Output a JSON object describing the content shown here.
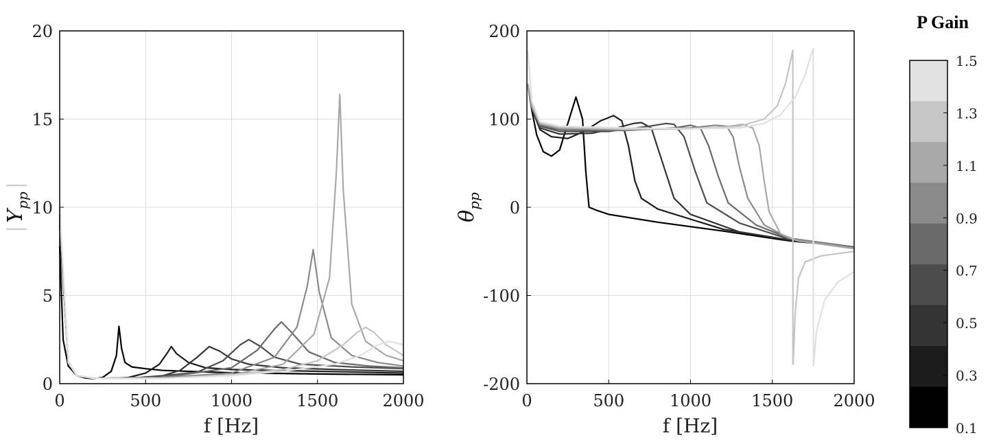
{
  "chart_data": [
    {
      "type": "line",
      "ylabel": "|Y_pp|",
      "xlabel": "f [Hz]",
      "xlim": [
        0,
        2000
      ],
      "ylim": [
        0,
        20
      ],
      "xticks": [
        "0",
        "500",
        "1000",
        "1500",
        "2000"
      ],
      "yticks": [
        "0",
        "5",
        "10",
        "15",
        "20"
      ],
      "grid": true,
      "series": [
        {
          "color": "#000000",
          "x": [
            0,
            20,
            50,
            100,
            150,
            200,
            250,
            300,
            330,
            345,
            360,
            380,
            420,
            500,
            600,
            800,
            1000,
            1500,
            2000
          ],
          "y": [
            7.8,
            2.5,
            1.0,
            0.45,
            0.32,
            0.28,
            0.35,
            0.7,
            1.6,
            3.25,
            2.0,
            1.2,
            0.95,
            0.85,
            0.75,
            0.68,
            0.62,
            0.55,
            0.5
          ]
        },
        {
          "color": "#1c1c1c",
          "x": [
            0,
            50,
            100,
            200,
            300,
            400,
            500,
            580,
            630,
            650,
            680,
            750,
            850,
            1000,
            1500,
            2000
          ],
          "y": [
            9.0,
            1.2,
            0.45,
            0.3,
            0.3,
            0.35,
            0.6,
            1.1,
            1.8,
            2.1,
            1.7,
            1.2,
            0.9,
            0.8,
            0.7,
            0.6
          ]
        },
        {
          "color": "#333333",
          "x": [
            0,
            50,
            100,
            200,
            400,
            600,
            700,
            800,
            870,
            930,
            1000,
            1100,
            1300,
            1600,
            2000
          ],
          "y": [
            9.3,
            1.2,
            0.45,
            0.3,
            0.3,
            0.45,
            0.75,
            1.5,
            2.1,
            1.85,
            1.4,
            1.1,
            0.9,
            0.8,
            0.7
          ]
        },
        {
          "color": "#4c4c4c",
          "x": [
            0,
            50,
            100,
            200,
            500,
            800,
            950,
            1050,
            1100,
            1170,
            1250,
            1400,
            1700,
            2000
          ],
          "y": [
            9.5,
            1.2,
            0.45,
            0.3,
            0.35,
            0.65,
            1.3,
            2.2,
            2.5,
            2.1,
            1.5,
            1.1,
            0.95,
            0.85
          ]
        },
        {
          "color": "#6a6a6a",
          "x": [
            0,
            50,
            100,
            200,
            600,
            1000,
            1150,
            1250,
            1290,
            1350,
            1450,
            1600,
            1800,
            2000
          ],
          "y": [
            9.6,
            1.2,
            0.45,
            0.3,
            0.35,
            0.9,
            1.9,
            3.1,
            3.5,
            2.9,
            1.8,
            1.2,
            1.0,
            0.9
          ]
        },
        {
          "color": "#8a8a8a",
          "x": [
            0,
            50,
            100,
            200,
            600,
            1000,
            1250,
            1380,
            1440,
            1475,
            1510,
            1580,
            1700,
            1850,
            2000
          ],
          "y": [
            9.7,
            1.2,
            0.45,
            0.3,
            0.35,
            0.6,
            1.5,
            3.2,
            5.5,
            7.6,
            5.2,
            2.6,
            1.6,
            1.2,
            1.0
          ]
        },
        {
          "color": "#a8a8a8",
          "x": [
            0,
            50,
            100,
            200,
            600,
            1000,
            1300,
            1480,
            1570,
            1610,
            1630,
            1650,
            1700,
            1780,
            1900,
            2000
          ],
          "y": [
            9.8,
            1.2,
            0.45,
            0.3,
            0.3,
            0.5,
            1.1,
            2.8,
            6.0,
            12.0,
            16.4,
            11.0,
            4.5,
            2.4,
            1.6,
            1.3
          ]
        },
        {
          "color": "#c4c4c4",
          "x": [
            0,
            50,
            100,
            200,
            600,
            1000,
            1300,
            1500,
            1650,
            1730,
            1780,
            1830,
            1900,
            2000
          ],
          "y": [
            9.9,
            1.2,
            0.45,
            0.3,
            0.3,
            0.5,
            0.8,
            1.3,
            2.2,
            2.9,
            3.2,
            2.9,
            2.2,
            1.6
          ]
        },
        {
          "color": "#e0e0e0",
          "x": [
            0,
            50,
            100,
            200,
            600,
            1000,
            1300,
            1600,
            1750,
            1850,
            1920,
            2000
          ],
          "y": [
            10.0,
            1.2,
            0.45,
            0.3,
            0.3,
            0.45,
            0.7,
            1.1,
            1.6,
            2.2,
            2.4,
            2.2
          ]
        }
      ]
    },
    {
      "type": "line",
      "ylabel": "θ_pp",
      "xlabel": "f [Hz]",
      "xlim": [
        0,
        2000
      ],
      "ylim": [
        -200,
        200
      ],
      "xticks": [
        "0",
        "500",
        "1000",
        "1500",
        "2000"
      ],
      "yticks": [
        "-200",
        "-100",
        "0",
        "100",
        "200"
      ],
      "grid": true,
      "series": [
        {
          "color": "#000000",
          "x": [
            5,
            30,
            60,
            100,
            150,
            200,
            250,
            300,
            340,
            360,
            380,
            420,
            500,
            800,
            1200,
            1600,
            2000
          ],
          "y": [
            140,
            110,
            82,
            63,
            58,
            65,
            95,
            125,
            100,
            40,
            0,
            -3,
            -8,
            -17,
            -27,
            -38,
            -45
          ]
        },
        {
          "color": "#1c1c1c",
          "x": [
            5,
            30,
            80,
            150,
            250,
            350,
            450,
            530,
            580,
            620,
            660,
            700,
            800,
            1200,
            1600,
            2000
          ],
          "y": [
            140,
            112,
            88,
            80,
            78,
            86,
            98,
            104,
            98,
            70,
            30,
            10,
            -2,
            -25,
            -37,
            -45
          ]
        },
        {
          "color": "#333333",
          "x": [
            5,
            30,
            80,
            200,
            400,
            550,
            650,
            700,
            760,
            830,
            900,
            1000,
            1300,
            1600,
            2000
          ],
          "y": [
            140,
            112,
            90,
            83,
            84,
            90,
            95,
            96,
            90,
            50,
            10,
            -8,
            -28,
            -37,
            -45
          ]
        },
        {
          "color": "#4c4c4c",
          "x": [
            5,
            30,
            80,
            200,
            500,
            750,
            850,
            900,
            960,
            1030,
            1100,
            1300,
            1600,
            2000
          ],
          "y": [
            140,
            113,
            92,
            86,
            86,
            92,
            95,
            94,
            80,
            40,
            5,
            -18,
            -36,
            -45
          ]
        },
        {
          "color": "#6a6a6a",
          "x": [
            5,
            30,
            80,
            200,
            600,
            900,
            1000,
            1060,
            1110,
            1170,
            1230,
            1400,
            1600,
            2000
          ],
          "y": [
            140,
            113,
            93,
            88,
            87,
            90,
            93,
            90,
            70,
            35,
            5,
            -20,
            -35,
            -45
          ]
        },
        {
          "color": "#8a8a8a",
          "x": [
            5,
            30,
            80,
            200,
            600,
            1000,
            1150,
            1220,
            1260,
            1300,
            1350,
            1450,
            1600,
            2000
          ],
          "y": [
            140,
            114,
            94,
            89,
            88,
            90,
            93,
            92,
            80,
            45,
            10,
            -20,
            -35,
            -46
          ]
        },
        {
          "color": "#a8a8a8",
          "x": [
            5,
            30,
            80,
            200,
            600,
            1000,
            1200,
            1320,
            1380,
            1420,
            1450,
            1480,
            1550,
            1650,
            2000
          ],
          "y": [
            140,
            115,
            95,
            90,
            88,
            89,
            91,
            94,
            90,
            70,
            30,
            -5,
            -30,
            -38,
            -47
          ]
        },
        {
          "color": "#c4c4c4",
          "x": [
            5,
            30,
            80,
            200,
            600,
            1000,
            1300,
            1450,
            1530,
            1580,
            1610,
            1625,
            1626,
            1627,
            1640,
            1660,
            1700,
            1800,
            2000
          ],
          "y": [
            178,
            120,
            96,
            91,
            89,
            89,
            92,
            100,
            115,
            140,
            165,
            178,
            -178,
            -178,
            -120,
            -80,
            -62,
            -55,
            -50
          ]
        },
        {
          "color": "#e0e0e0",
          "x": [
            5,
            30,
            80,
            200,
            600,
            1000,
            1300,
            1450,
            1550,
            1640,
            1700,
            1740,
            1750,
            1751,
            1752,
            1770,
            1820,
            1900,
            2000
          ],
          "y": [
            178,
            120,
            97,
            92,
            90,
            89,
            90,
            95,
            105,
            125,
            150,
            175,
            180,
            -180,
            -178,
            -140,
            -105,
            -85,
            -73
          ]
        }
      ]
    }
  ],
  "colorbar": {
    "title": "P Gain",
    "ticks": [
      "1.5",
      "1.3",
      "1.1",
      "0.9",
      "0.7",
      "0.5",
      "0.3",
      "0.1"
    ],
    "colors": [
      "#e2e2e2",
      "#c6c6c6",
      "#a8a8a8",
      "#8a8a8a",
      "#6a6a6a",
      "#4c4c4c",
      "#333333",
      "#1c1c1c",
      "#000000"
    ]
  }
}
